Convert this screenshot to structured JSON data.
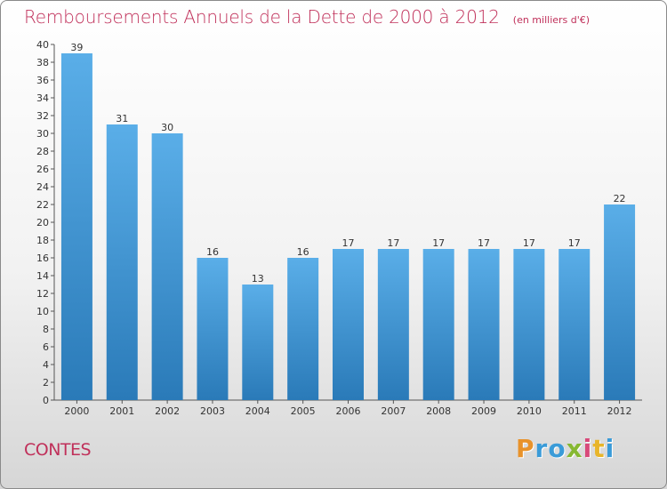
{
  "header": {
    "title": "Remboursements Annuels de la Dette de 2000 à 2012",
    "subtitle": "(en milliers d'€)"
  },
  "footer": {
    "commune": "CONTES",
    "logo_text": "Proxiti",
    "logo_colors": [
      "#e8922a",
      "#3a9bd8",
      "#3a9bd8",
      "#86b832",
      "#d84a7a",
      "#e8b52a",
      "#3a9bd8"
    ]
  },
  "chart_data": {
    "type": "bar",
    "categories": [
      "2000",
      "2001",
      "2002",
      "2003",
      "2004",
      "2005",
      "2006",
      "2007",
      "2008",
      "2009",
      "2010",
      "2011",
      "2012"
    ],
    "values": [
      39,
      31,
      30,
      16,
      13,
      16,
      17,
      17,
      17,
      17,
      17,
      17,
      22
    ],
    "title": "Remboursements Annuels de la Dette de 2000 à 2012",
    "xlabel": "",
    "ylabel": "",
    "ylim": [
      0,
      40
    ],
    "ytick_step": 2,
    "grid": false,
    "legend": "none",
    "bar_color_top": "#5aaee8",
    "bar_color_bottom": "#2a7ab8"
  }
}
